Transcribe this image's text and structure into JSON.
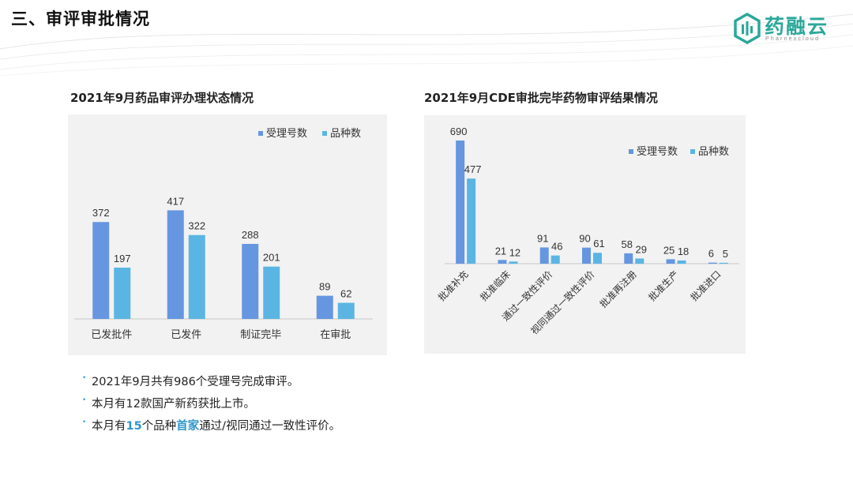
{
  "header": {
    "title": "三、审评审批情况"
  },
  "logo": {
    "name": "药融云",
    "sub": "Pharnexcloud",
    "color": "#2aa89a"
  },
  "colors": {
    "series1": "#6696e0",
    "series2": "#5bb5e3",
    "panel": "#f2f2f2",
    "highlight": "#2f95c8"
  },
  "chart_data": [
    {
      "type": "bar",
      "title": "2021年9月药品审评办理状态情况",
      "categories": [
        "已发批件",
        "已发件",
        "制证完毕",
        "在审批"
      ],
      "series": [
        {
          "name": "受理号数",
          "values": [
            372,
            417,
            288,
            89
          ]
        },
        {
          "name": "品种数",
          "values": [
            197,
            322,
            201,
            62
          ]
        }
      ],
      "ylim": [
        0,
        450
      ],
      "legend": "top-right",
      "grid": false
    },
    {
      "type": "bar",
      "title": "2021年9月CDE审批完毕药物审评结果情况",
      "categories": [
        "批准补充",
        "批准临床",
        "通过一致性评价",
        "视同通过一致性评价",
        "批准再注册",
        "批准生产",
        "批准进口"
      ],
      "series": [
        {
          "name": "受理号数",
          "values": [
            690,
            21,
            91,
            90,
            58,
            25,
            6
          ]
        },
        {
          "name": "品种数",
          "values": [
            477,
            12,
            46,
            61,
            29,
            18,
            5
          ]
        }
      ],
      "ylim": [
        0,
        750
      ],
      "legend": "top-right",
      "grid": false
    }
  ],
  "bullets": [
    {
      "parts": [
        {
          "text": "2021年9月共有986个受理号完成审评。",
          "hl": false
        }
      ]
    },
    {
      "parts": [
        {
          "text": "本月有12款国产新药获批上市。",
          "hl": false
        }
      ]
    },
    {
      "parts": [
        {
          "text": "本月有",
          "hl": false
        },
        {
          "text": "15",
          "hl": true
        },
        {
          "text": "个品种",
          "hl": false
        },
        {
          "text": "首家",
          "hl": true
        },
        {
          "text": "通过/视同通过一致性评价。",
          "hl": false
        }
      ]
    }
  ]
}
